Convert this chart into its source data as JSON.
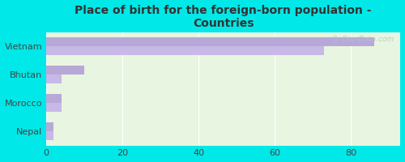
{
  "title": "Place of birth for the foreign-born population -\nCountries",
  "categories": [
    "Nepal",
    "Morocco",
    "Bhutan",
    "Vietnam"
  ],
  "series1": [
    2,
    4,
    10,
    86
  ],
  "series2": [
    2,
    4,
    4,
    73
  ],
  "bar_color1": "#b8a8d8",
  "bar_color2": "#c8b8e8",
  "background_outer": "#00e8e8",
  "background_inner": "#e8f5e0",
  "xlim": [
    0,
    93
  ],
  "xticks": [
    0,
    20,
    40,
    60,
    80
  ],
  "bar_height": 0.32,
  "watermark": "ⓘ  City-Data.com",
  "title_color": "#333333",
  "title_fontsize": 10
}
